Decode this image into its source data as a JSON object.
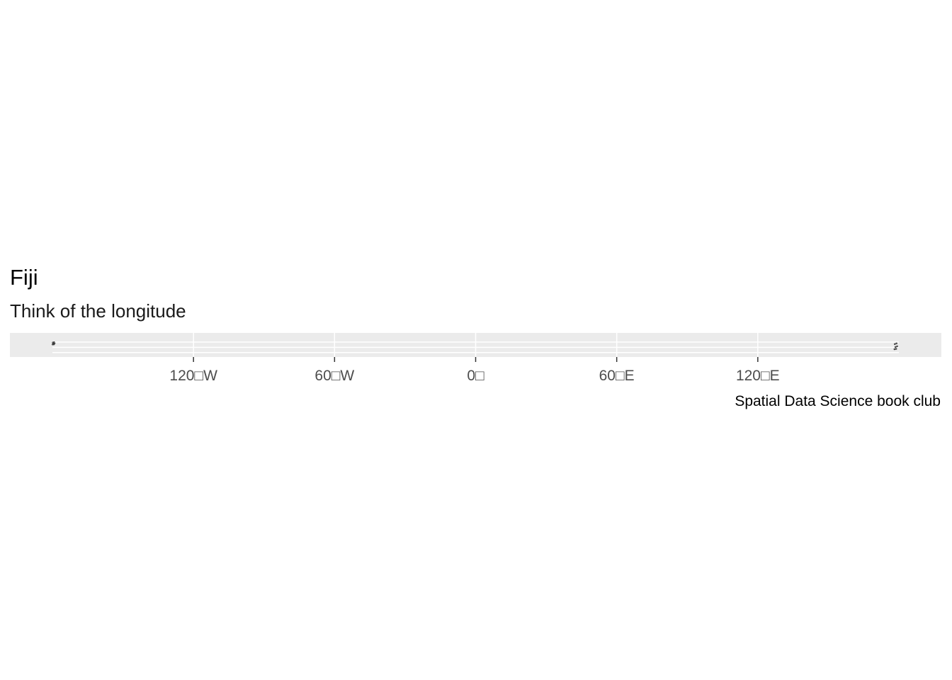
{
  "title": "Fiji",
  "subtitle": "Think of the longitude",
  "caption": "Spatial Data Science book club",
  "colors": {
    "panel_background": "#ebebeb",
    "grid_line": "#ffffff",
    "tick": "#333333",
    "tick_label": "#4d4d4d",
    "geometry": "#333333"
  },
  "chart_data": {
    "type": "map",
    "title": "Fiji",
    "subtitle": "Think of the longitude",
    "caption": "Spatial Data Science book club",
    "xlim": [
      -180,
      180
    ],
    "ylim": [
      -21.7,
      -12.5
    ],
    "x_ticks": [
      {
        "value": -120,
        "label": "120□W"
      },
      {
        "value": -60,
        "label": "60□W"
      },
      {
        "value": 0,
        "label": "0□"
      },
      {
        "value": 60,
        "label": "60□E"
      },
      {
        "value": 120,
        "label": "120□E"
      }
    ],
    "y_gridlines": [
      -20,
      -18,
      -16
    ],
    "grid": true,
    "features": [
      {
        "name": "islands",
        "lon": [
          178.0,
          179.4
        ],
        "lat": [
          -19.0,
          -16.2
        ]
      },
      {
        "name": "islands",
        "lon": [
          -180.0,
          -179.0
        ],
        "lat": [
          -17.0,
          -16.0
        ]
      }
    ]
  }
}
